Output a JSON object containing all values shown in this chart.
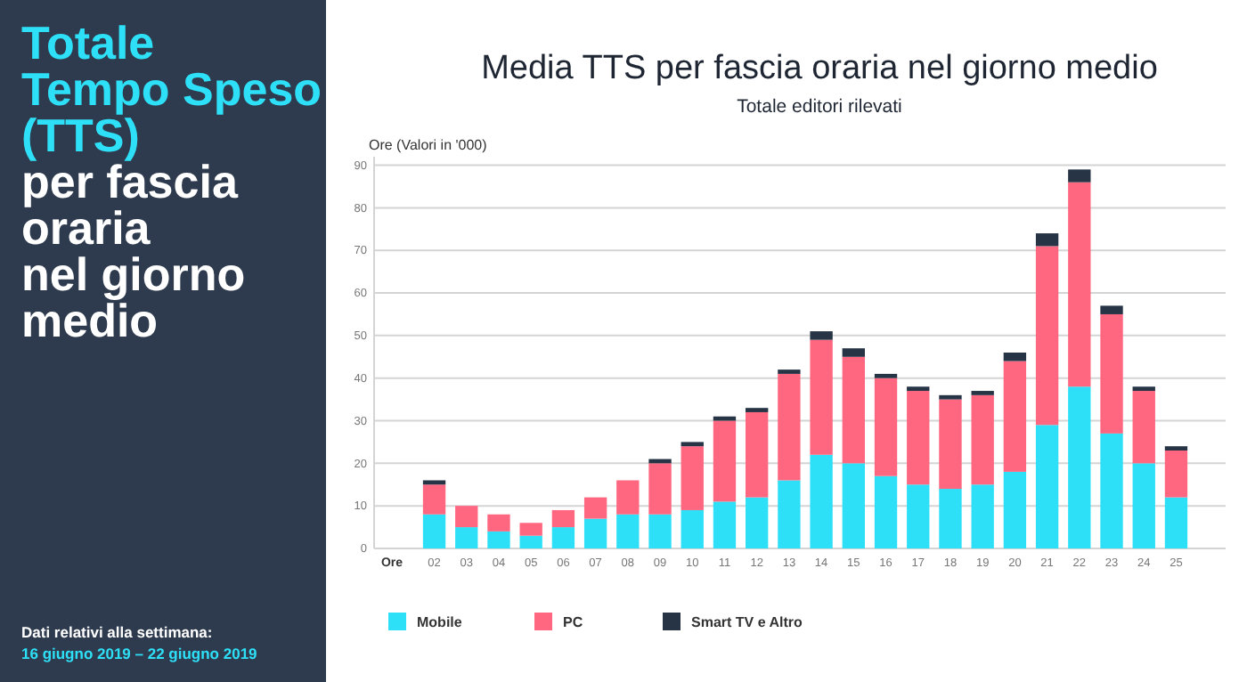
{
  "chart_data": {
    "type": "bar",
    "stacked": true,
    "title": "Media TTS per fascia oraria nel giorno medio",
    "subtitle": "Totale editori rilevati",
    "ylabel": "Ore (Valori in '000)",
    "xlabel": "Ore",
    "annotations": [
      "Totale\nTempo Speso\n(TTS)",
      "per fascia\noraria\nnel giorno\nmedio",
      "Dati relativi alla settimana:",
      "16 giugno 2019 – 22 giugno 2019"
    ],
    "categories": [
      "02",
      "03",
      "04",
      "05",
      "06",
      "07",
      "08",
      "09",
      "10",
      "11",
      "12",
      "13",
      "14",
      "15",
      "16",
      "17",
      "18",
      "19",
      "20",
      "21",
      "22",
      "23",
      "24",
      "25"
    ],
    "series": [
      {
        "name": "Mobile",
        "color": "#2ee0f7",
        "values": [
          8,
          5,
          4,
          3,
          5,
          7,
          8,
          8,
          9,
          11,
          12,
          16,
          22,
          20,
          17,
          15,
          14,
          15,
          18,
          29,
          38,
          27,
          20,
          12
        ]
      },
      {
        "name": "PC",
        "color": "#ff6680",
        "values": [
          7,
          5,
          4,
          3,
          4,
          5,
          8,
          12,
          15,
          19,
          20,
          25,
          27,
          25,
          23,
          22,
          21,
          21,
          26,
          42,
          48,
          28,
          17,
          11
        ]
      },
      {
        "name": "Smart TV e Altro",
        "color": "#263445",
        "values": [
          1,
          0,
          0,
          0,
          0,
          0,
          0,
          1,
          1,
          1,
          1,
          1,
          2,
          2,
          1,
          1,
          1,
          1,
          2,
          3,
          3,
          2,
          1,
          1
        ]
      }
    ],
    "ylim": [
      0,
      92
    ],
    "yticks": [
      0,
      10,
      20,
      30,
      40,
      50,
      60,
      70,
      80,
      90
    ],
    "grid": "y",
    "legend": "bottom left"
  }
}
